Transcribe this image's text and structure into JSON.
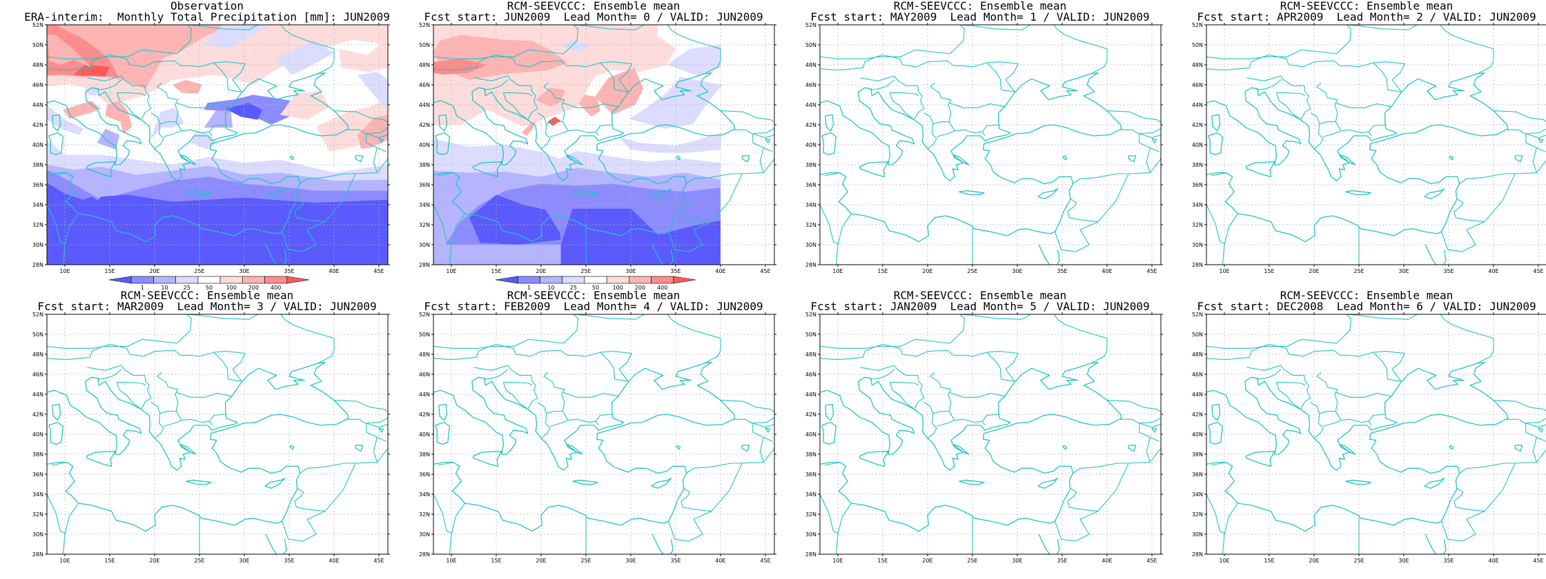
{
  "panels": [
    {
      "title1": "Observation",
      "title2": "ERA-interim:  Monthly Total Precipitation [mm]: JUN2009",
      "filled": "obs",
      "colorbar": true
    },
    {
      "title1": "RCM-SEEVCCC: Ensemble mean",
      "title2": "Fcst start: JUN2009  Lead Month= 0 / VALID: JUN2009",
      "filled": "fc0",
      "colorbar": true
    },
    {
      "title1": "RCM-SEEVCCC: Ensemble mean",
      "title2": "Fcst start: MAY2009  Lead Month= 1 / VALID: JUN2009",
      "filled": "",
      "colorbar": false
    },
    {
      "title1": "RCM-SEEVCCC: Ensemble mean",
      "title2": "Fcst start: APR2009  Lead Month= 2 / VALID: JUN2009",
      "filled": "",
      "colorbar": false
    },
    {
      "title1": "RCM-SEEVCCC: Ensemble mean",
      "title2": "Fcst start: MAR2009  Lead Month= 3 / VALID: JUN2009",
      "filled": "",
      "colorbar": false
    },
    {
      "title1": "RCM-SEEVCCC: Ensemble mean",
      "title2": "Fcst start: FEB2009  Lead Month= 4 / VALID: JUN2009",
      "filled": "",
      "colorbar": false
    },
    {
      "title1": "RCM-SEEVCCC: Ensemble mean",
      "title2": "Fcst start: JAN2009  Lead Month= 5 / VALID: JUN2009",
      "filled": "",
      "colorbar": false
    },
    {
      "title1": "RCM-SEEVCCC: Ensemble mean",
      "title2": "Fcst start: DEC2008  Lead Month= 6 / VALID: JUN2009",
      "filled": "",
      "colorbar": false
    }
  ],
  "lat_labels": [
    "28N",
    "30N",
    "32N",
    "34N",
    "36N",
    "38N",
    "40N",
    "42N",
    "44N",
    "46N",
    "48N",
    "50N",
    "52N"
  ],
  "lon_labels": [
    "10E",
    "15E",
    "20E",
    "25E",
    "30E",
    "35E",
    "40E",
    "45E"
  ],
  "colorbar_labels": [
    "1",
    "10",
    "25",
    "50",
    "100",
    "200",
    "400"
  ],
  "colors": {
    "coast": "#20c4c4",
    "grid": "#b4b4b4",
    "levels": [
      "#5a5aff",
      "#8c8cff",
      "#b4b4ff",
      "#dcdcff",
      "#ffffff",
      "#ffdcdc",
      "#ffb4b4",
      "#ff8c8c",
      "#ff5a5a"
    ]
  }
}
